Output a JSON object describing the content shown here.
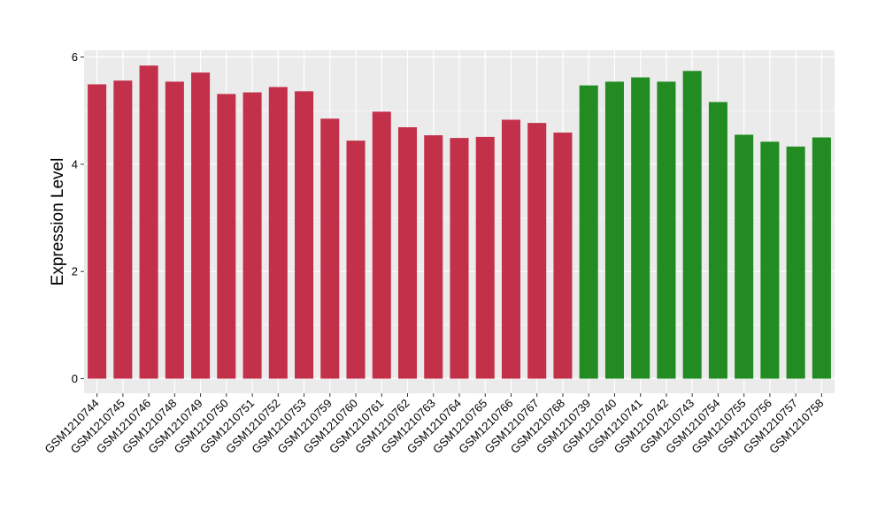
{
  "chart_data": {
    "type": "bar",
    "title": "",
    "xlabel": "",
    "ylabel": "Expression Level",
    "ylim": [
      0,
      6.2
    ],
    "yticks": [
      0,
      2,
      4,
      6
    ],
    "grid": true,
    "legend": "none",
    "categories": [
      "GSM1210744",
      "GSM1210745",
      "GSM1210746",
      "GSM1210748",
      "GSM1210749",
      "GSM1210750",
      "GSM1210751",
      "GSM1210752",
      "GSM1210753",
      "GSM1210759",
      "GSM1210760",
      "GSM1210761",
      "GSM1210762",
      "GSM1210763",
      "GSM1210764",
      "GSM1210765",
      "GSM1210766",
      "GSM1210767",
      "GSM1210768",
      "GSM1210739",
      "GSM1210740",
      "GSM1210741",
      "GSM1210742",
      "GSM1210743",
      "GSM1210754",
      "GSM1210755",
      "GSM1210756",
      "GSM1210757",
      "GSM1210758"
    ],
    "values": [
      5.49,
      5.56,
      5.84,
      5.54,
      5.71,
      5.31,
      5.34,
      5.44,
      5.36,
      4.85,
      4.44,
      4.98,
      4.69,
      4.54,
      4.49,
      4.51,
      4.83,
      4.77,
      4.59,
      5.47,
      5.54,
      5.62,
      5.54,
      5.74,
      5.16,
      4.55,
      4.42,
      4.33,
      4.5
    ],
    "group_colors": [
      "#c3304a",
      "#228b22"
    ],
    "bar_groups": [
      0,
      0,
      0,
      0,
      0,
      0,
      0,
      0,
      0,
      0,
      0,
      0,
      0,
      0,
      0,
      0,
      0,
      0,
      0,
      1,
      1,
      1,
      1,
      1,
      1,
      1,
      1,
      1,
      1
    ],
    "panel_background": "#ebebeb",
    "grid_color": "#ffffff"
  }
}
